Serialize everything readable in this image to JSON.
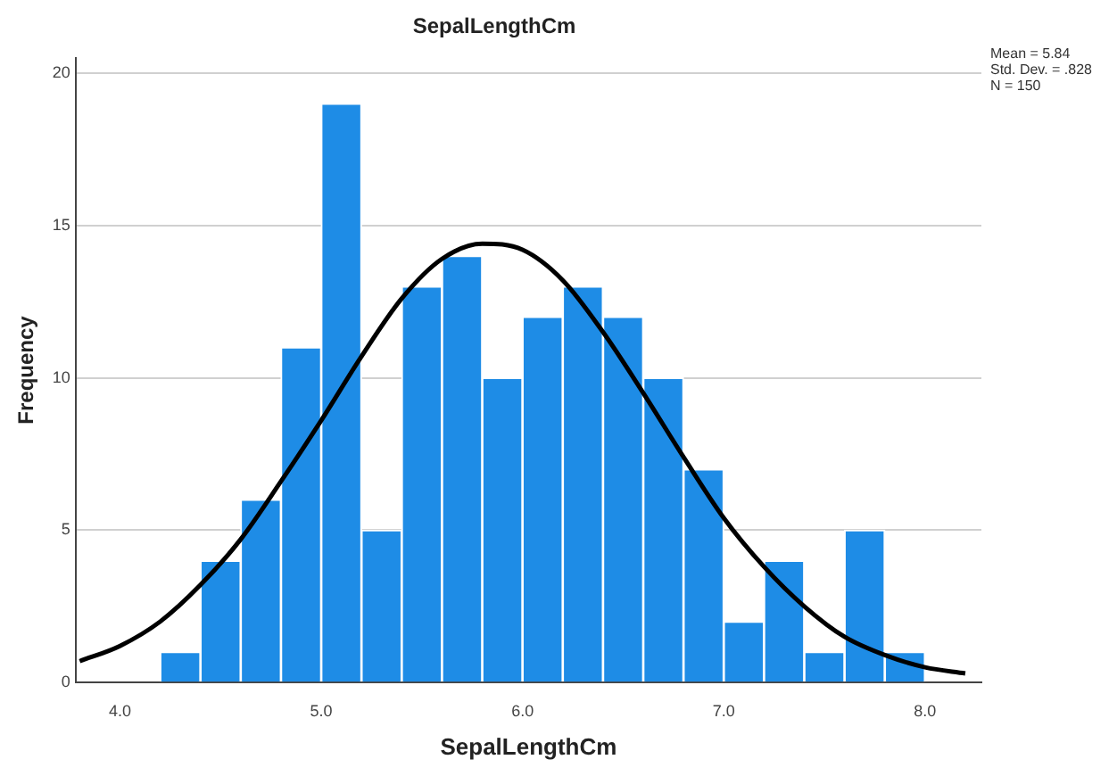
{
  "chart_data": {
    "type": "histogram",
    "title": "SepalLengthCm",
    "xlabel": "SepalLengthCm",
    "ylabel": "Frequency",
    "bins": [
      4.2,
      4.4,
      4.6,
      4.8,
      5.0,
      5.2,
      5.4,
      5.6,
      5.8,
      6.0,
      6.2,
      6.4,
      6.6,
      6.8,
      7.0,
      7.2,
      7.4,
      7.6,
      7.8,
      8.0
    ],
    "values": [
      1,
      4,
      6,
      11,
      19,
      5,
      13,
      14,
      10,
      12,
      13,
      12,
      10,
      7,
      2,
      4,
      1,
      5,
      1
    ],
    "color": "#1e8ce6",
    "series": [
      {
        "type": "line",
        "color": "#000000",
        "x": [
          3.8,
          4.0,
          4.2,
          4.4,
          4.6,
          4.8,
          5.0,
          5.2,
          5.4,
          5.6,
          5.8,
          6.0,
          6.2,
          6.4,
          6.6,
          6.8,
          7.0,
          7.2,
          7.4,
          7.6,
          7.8,
          8.0,
          8.2
        ],
        "values": [
          0.7,
          1.2,
          2.0,
          3.2,
          4.7,
          6.6,
          8.6,
          10.7,
          12.6,
          13.9,
          14.4,
          14.2,
          13.2,
          11.5,
          9.5,
          7.4,
          5.4,
          3.8,
          2.5,
          1.5,
          0.9,
          0.5,
          0.3
        ]
      }
    ],
    "xlim": [
      3.78,
      8.28
    ],
    "ylim": [
      0,
      20.5
    ],
    "xticks": [
      {
        "value": 4,
        "label": "4.0"
      },
      {
        "value": 5,
        "label": "5.0"
      },
      {
        "value": 6,
        "label": "6.0"
      },
      {
        "value": 7,
        "label": "7.0"
      },
      {
        "value": 8,
        "label": "8.0"
      }
    ],
    "yticks": [
      0,
      5,
      10,
      15,
      20
    ],
    "grid": "y",
    "legend": false,
    "marker": "none",
    "line_style": "solid",
    "annotations": [
      "Mean = 5.84",
      "Std. Dev. = .828",
      "N = 150"
    ]
  }
}
